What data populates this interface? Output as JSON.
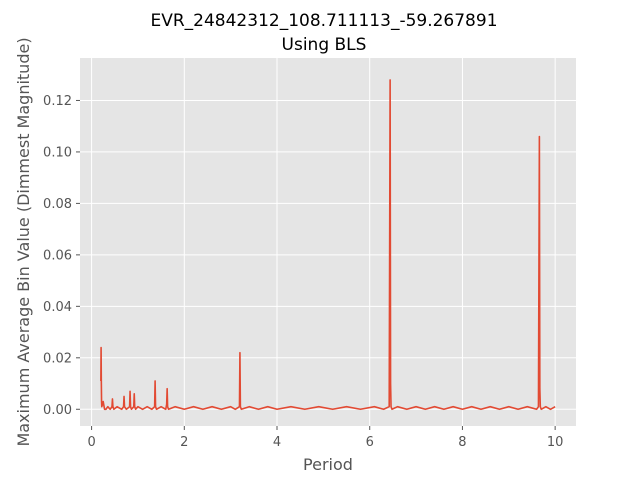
{
  "chart_data": {
    "type": "line",
    "title_line1": "EVR_24842312_108.711113_-59.267891",
    "title_line2": "Using BLS",
    "xlabel": "Period",
    "ylabel": "Maximum Average Bin Value (Dimmest Magnitude)",
    "xlim": [
      -0.25,
      10.45
    ],
    "ylim": [
      -0.0065,
      0.1365
    ],
    "xticks": [
      0,
      2,
      4,
      6,
      8,
      10
    ],
    "xtick_labels": [
      "0",
      "2",
      "4",
      "6",
      "8",
      "10"
    ],
    "yticks": [
      0.0,
      0.02,
      0.04,
      0.06,
      0.08,
      0.1,
      0.12
    ],
    "ytick_labels": [
      "0.00",
      "0.02",
      "0.04",
      "0.06",
      "0.08",
      "0.10",
      "0.12"
    ],
    "grid": true,
    "background": "#e5e5e5",
    "series": [
      {
        "color": "#e24a33",
        "x": [
          0.2,
          0.205,
          0.21,
          0.215,
          0.22,
          0.25,
          0.28,
          0.31,
          0.35,
          0.4,
          0.44,
          0.45,
          0.46,
          0.48,
          0.55,
          0.65,
          0.69,
          0.7,
          0.71,
          0.75,
          0.82,
          0.83,
          0.84,
          0.86,
          0.91,
          0.92,
          0.93,
          0.95,
          1.0,
          1.1,
          1.2,
          1.3,
          1.36,
          1.37,
          1.38,
          1.4,
          1.5,
          1.6,
          1.62,
          1.63,
          1.64,
          1.66,
          1.8,
          2.0,
          2.2,
          2.4,
          2.6,
          2.8,
          3.0,
          3.1,
          3.19,
          3.2,
          3.21,
          3.23,
          3.4,
          3.6,
          3.8,
          4.0,
          4.3,
          4.6,
          4.9,
          5.2,
          5.5,
          5.8,
          6.1,
          6.3,
          6.42,
          6.44,
          6.45,
          6.46,
          6.48,
          6.6,
          6.8,
          7.0,
          7.2,
          7.4,
          7.6,
          7.8,
          8.0,
          8.2,
          8.4,
          8.6,
          8.8,
          9.0,
          9.2,
          9.4,
          9.6,
          9.64,
          9.66,
          9.67,
          9.68,
          9.7,
          9.8,
          9.9,
          10.0
        ],
        "y": [
          0.011,
          0.024,
          0.011,
          0.003,
          0.001,
          0.003,
          0.0,
          0.0,
          0.001,
          0.0,
          0.001,
          0.004,
          0.001,
          0.0,
          0.001,
          0.0,
          0.001,
          0.005,
          0.001,
          0.0,
          0.001,
          0.007,
          0.001,
          0.0,
          0.001,
          0.006,
          0.001,
          0.0,
          0.001,
          0.0,
          0.001,
          0.0,
          0.001,
          0.011,
          0.001,
          0.0,
          0.001,
          0.0,
          0.002,
          0.008,
          0.001,
          0.0,
          0.001,
          0.0,
          0.001,
          0.0,
          0.001,
          0.0,
          0.001,
          0.0,
          0.001,
          0.022,
          0.001,
          0.0,
          0.001,
          0.0,
          0.001,
          0.0,
          0.001,
          0.0,
          0.001,
          0.0,
          0.001,
          0.0,
          0.001,
          0.0,
          0.001,
          0.128,
          0.01,
          0.001,
          0.0,
          0.001,
          0.0,
          0.001,
          0.0,
          0.001,
          0.0,
          0.001,
          0.0,
          0.001,
          0.0,
          0.001,
          0.0,
          0.001,
          0.0,
          0.001,
          0.0,
          0.001,
          0.106,
          0.008,
          0.001,
          0.0,
          0.001,
          0.0,
          0.001
        ]
      }
    ]
  }
}
